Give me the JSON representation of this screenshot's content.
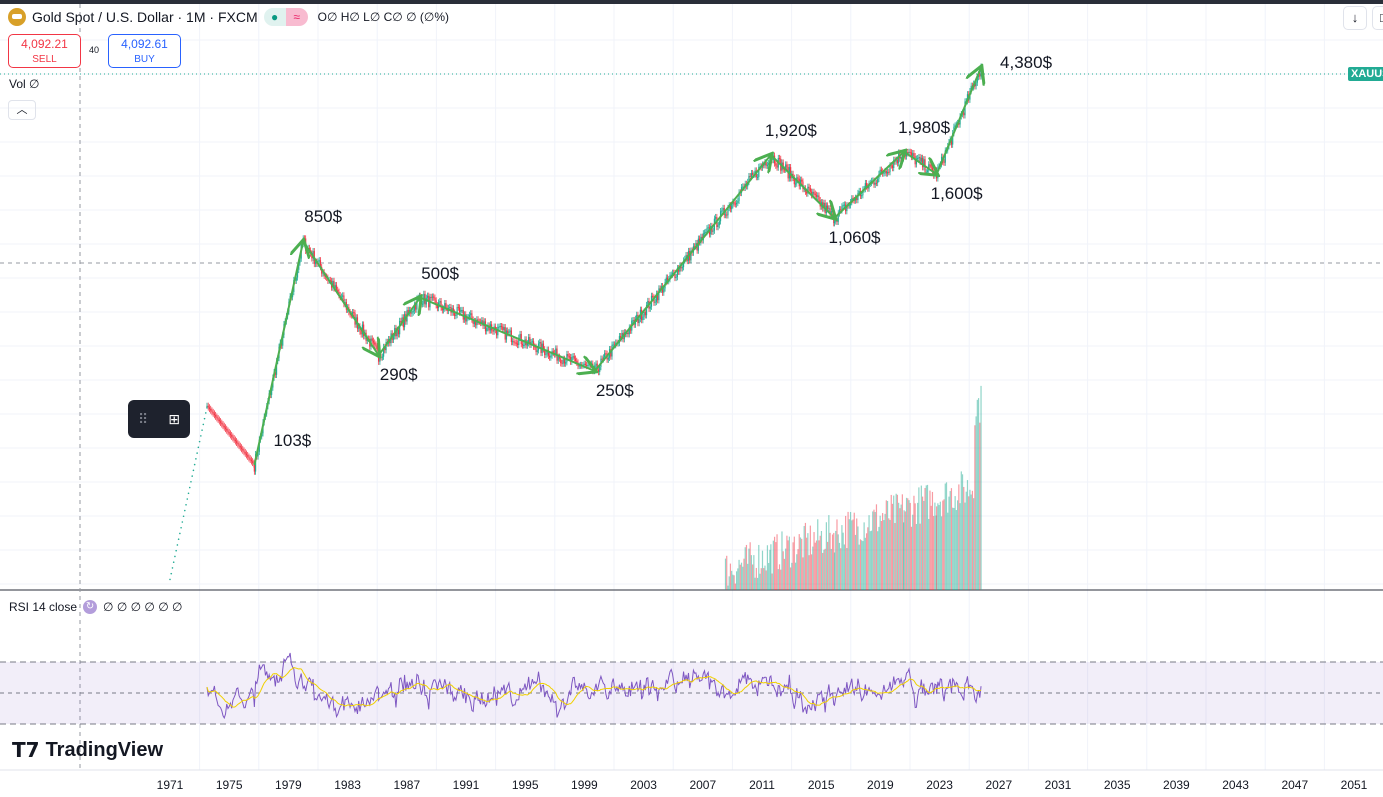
{
  "header": {
    "title": "Gold Spot / U.S. Dollar · 1M · FXCM",
    "ohlc": "O∅ H∅ L∅ C∅ ∅ (∅%)",
    "symbol_tag": "XAUUSD"
  },
  "trade": {
    "sell_price": "4,092.21",
    "sell_label": "SELL",
    "spread": "40",
    "buy_price": "4,092.61",
    "buy_label": "BUY"
  },
  "volume_legend": "Vol  ∅",
  "rsi_legend": {
    "label": "RSI 14 close",
    "values": "∅ ∅ ∅ ∅ ∅ ∅"
  },
  "branding": "TradingView",
  "colors": {
    "up": "#22ab94",
    "down": "#f23645",
    "annotation": "#4caf50",
    "rsi": "#7e57c2",
    "rsi_ma": "#f0d000"
  },
  "chart_data": {
    "type": "candlestick",
    "title": "Gold Spot / U.S. Dollar · 1M · FXCM",
    "y_scale": "log",
    "x_ticks": [
      "1971",
      "1975",
      "1979",
      "1983",
      "1987",
      "1991",
      "1995",
      "1999",
      "2003",
      "2007",
      "2011",
      "2015",
      "2019",
      "2023",
      "2027",
      "2031",
      "2035",
      "2039",
      "2043",
      "2047",
      "2051"
    ],
    "pivots": [
      {
        "year": 1976.7,
        "price": 103,
        "label": "103$"
      },
      {
        "year": 1980.0,
        "price": 850,
        "label": "850$"
      },
      {
        "year": 1985.1,
        "price": 290,
        "label": "290$"
      },
      {
        "year": 1987.9,
        "price": 500,
        "label": "500$"
      },
      {
        "year": 1999.7,
        "price": 250,
        "label": "250$"
      },
      {
        "year": 2011.6,
        "price": 1920,
        "label": "1,920$"
      },
      {
        "year": 2015.9,
        "price": 1060,
        "label": "1,060$"
      },
      {
        "year": 2020.6,
        "price": 1980,
        "label": "1,980$"
      },
      {
        "year": 2022.8,
        "price": 1600,
        "label": "1,600$"
      },
      {
        "year": 2025.8,
        "price": 4380,
        "label": "4,380$"
      }
    ],
    "rsi_bands": [
      70,
      50,
      30
    ]
  }
}
